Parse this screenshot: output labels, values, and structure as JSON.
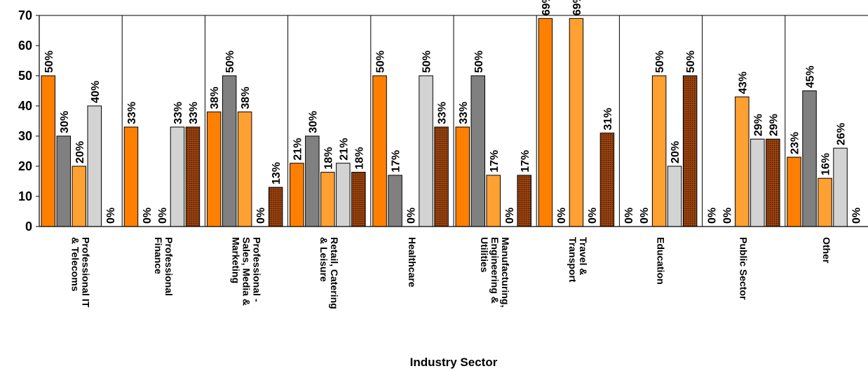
{
  "chart_data": {
    "type": "bar",
    "title": "",
    "xlabel": "Industry Sector",
    "ylabel": "",
    "ylim": [
      0,
      70
    ],
    "yticks": [
      0,
      10,
      20,
      30,
      40,
      50,
      60,
      70
    ],
    "grid": "vertical category separators",
    "categories": [
      [
        "Professional IT",
        "& Telecoms"
      ],
      [
        "Professional",
        "Finance"
      ],
      [
        "Professional -",
        "Sales, Media &",
        "Marketing"
      ],
      [
        "Retail, Catering",
        "& Leisure"
      ],
      [
        "Healthcare"
      ],
      [
        "Manufacturing,",
        "Engineering &",
        "Utilities"
      ],
      [
        "Travel &",
        "Transport"
      ],
      [
        "Education"
      ],
      [
        "Public Sector"
      ],
      [
        "Other"
      ]
    ],
    "series": [
      {
        "color": "#FF8000",
        "pattern": "none",
        "values": [
          50,
          33,
          38,
          21,
          50,
          33,
          69,
          0,
          0,
          23
        ]
      },
      {
        "color": "#808080",
        "pattern": "none",
        "values": [
          30,
          0,
          50,
          30,
          17,
          50,
          0,
          0,
          0,
          45
        ]
      },
      {
        "color": "#FFA033",
        "pattern": "none",
        "values": [
          20,
          0,
          38,
          18,
          0,
          17,
          69,
          50,
          43,
          16
        ]
      },
      {
        "color": "#D3D3D3",
        "pattern": "none",
        "values": [
          40,
          33,
          0,
          21,
          50,
          0,
          0,
          20,
          29,
          26
        ]
      },
      {
        "color": "#8B3A0A",
        "pattern": "dots",
        "values": [
          0,
          33,
          13,
          18,
          33,
          17,
          31,
          50,
          29,
          0
        ]
      }
    ],
    "value_suffix": "%"
  }
}
